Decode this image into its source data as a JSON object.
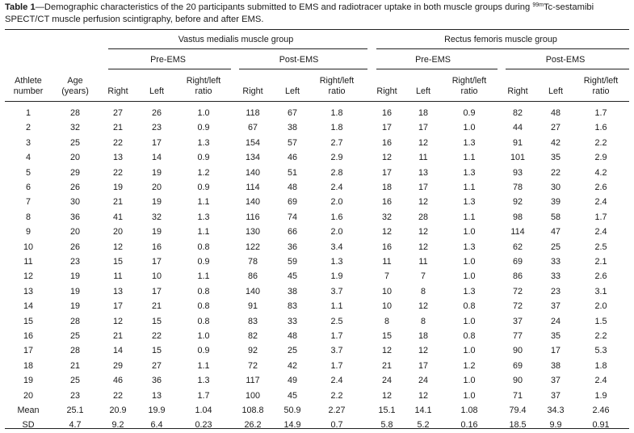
{
  "caption": {
    "label": "Table 1",
    "text_before_sup": "—Demographic characteristics of the 20 participants submitted to EMS and radiotracer uptake in both muscle groups during ",
    "sup": "99m",
    "text_after_sup": "Tc-sestamibi SPECT/CT muscle perfusion scintigraphy, before and after EMS."
  },
  "groups": {
    "vastus": "Vastus medialis muscle group",
    "rectus": "Rectus femoris muscle group"
  },
  "phases": {
    "vm_pre": "Pre-EMS",
    "vm_post": "Post-EMS",
    "rf_pre": "Pre-EMS",
    "rf_post": "Post-EMS"
  },
  "columns": {
    "athlete_1": "Athlete",
    "athlete_2": "number",
    "age_1": "Age",
    "age_2": "(years)",
    "right": "Right",
    "left": "Left",
    "ratio_1": "Right/left",
    "ratio_2": "ratio"
  },
  "rows": [
    [
      "1",
      "28",
      "27",
      "26",
      "1.0",
      "118",
      "67",
      "1.8",
      "16",
      "18",
      "0.9",
      "82",
      "48",
      "1.7"
    ],
    [
      "2",
      "32",
      "21",
      "23",
      "0.9",
      "67",
      "38",
      "1.8",
      "17",
      "17",
      "1.0",
      "44",
      "27",
      "1.6"
    ],
    [
      "3",
      "25",
      "22",
      "17",
      "1.3",
      "154",
      "57",
      "2.7",
      "16",
      "12",
      "1.3",
      "91",
      "42",
      "2.2"
    ],
    [
      "4",
      "20",
      "13",
      "14",
      "0.9",
      "134",
      "46",
      "2.9",
      "12",
      "11",
      "1.1",
      "101",
      "35",
      "2.9"
    ],
    [
      "5",
      "29",
      "22",
      "19",
      "1.2",
      "140",
      "51",
      "2.8",
      "17",
      "13",
      "1.3",
      "93",
      "22",
      "4.2"
    ],
    [
      "6",
      "26",
      "19",
      "20",
      "0.9",
      "114",
      "48",
      "2.4",
      "18",
      "17",
      "1.1",
      "78",
      "30",
      "2.6"
    ],
    [
      "7",
      "30",
      "21",
      "19",
      "1.1",
      "140",
      "69",
      "2.0",
      "16",
      "12",
      "1.3",
      "92",
      "39",
      "2.4"
    ],
    [
      "8",
      "36",
      "41",
      "32",
      "1.3",
      "116",
      "74",
      "1.6",
      "32",
      "28",
      "1.1",
      "98",
      "58",
      "1.7"
    ],
    [
      "9",
      "20",
      "20",
      "19",
      "1.1",
      "130",
      "66",
      "2.0",
      "12",
      "12",
      "1.0",
      "114",
      "47",
      "2.4"
    ],
    [
      "10",
      "26",
      "12",
      "16",
      "0.8",
      "122",
      "36",
      "3.4",
      "16",
      "12",
      "1.3",
      "62",
      "25",
      "2.5"
    ],
    [
      "11",
      "23",
      "15",
      "17",
      "0.9",
      "78",
      "59",
      "1.3",
      "11",
      "11",
      "1.0",
      "69",
      "33",
      "2.1"
    ],
    [
      "12",
      "19",
      "11",
      "10",
      "1.1",
      "86",
      "45",
      "1.9",
      "7",
      "7",
      "1.0",
      "86",
      "33",
      "2.6"
    ],
    [
      "13",
      "19",
      "13",
      "17",
      "0.8",
      "140",
      "38",
      "3.7",
      "10",
      "8",
      "1.3",
      "72",
      "23",
      "3.1"
    ],
    [
      "14",
      "19",
      "17",
      "21",
      "0.8",
      "91",
      "83",
      "1.1",
      "10",
      "12",
      "0.8",
      "72",
      "37",
      "2.0"
    ],
    [
      "15",
      "28",
      "12",
      "15",
      "0.8",
      "83",
      "33",
      "2.5",
      "8",
      "8",
      "1.0",
      "37",
      "24",
      "1.5"
    ],
    [
      "16",
      "25",
      "21",
      "22",
      "1.0",
      "82",
      "48",
      "1.7",
      "15",
      "18",
      "0.8",
      "77",
      "35",
      "2.2"
    ],
    [
      "17",
      "28",
      "14",
      "15",
      "0.9",
      "92",
      "25",
      "3.7",
      "12",
      "12",
      "1.0",
      "90",
      "17",
      "5.3"
    ],
    [
      "18",
      "21",
      "29",
      "27",
      "1.1",
      "72",
      "42",
      "1.7",
      "21",
      "17",
      "1.2",
      "69",
      "38",
      "1.8"
    ],
    [
      "19",
      "25",
      "46",
      "36",
      "1.3",
      "117",
      "49",
      "2.4",
      "24",
      "24",
      "1.0",
      "90",
      "37",
      "2.4"
    ],
    [
      "20",
      "23",
      "22",
      "13",
      "1.7",
      "100",
      "45",
      "2.2",
      "12",
      "12",
      "1.0",
      "71",
      "37",
      "1.9"
    ],
    [
      "Mean",
      "25.1",
      "20.9",
      "19.9",
      "1.04",
      "108.8",
      "50.9",
      "2.27",
      "15.1",
      "14.1",
      "1.08",
      "79.4",
      "34.3",
      "2.46"
    ],
    [
      "SD",
      "4.7",
      "9.2",
      "6.4",
      "0.23",
      "26.2",
      "14.9",
      "0.7",
      "5.8",
      "5.2",
      "0.16",
      "18.5",
      "9.9",
      "0.91"
    ]
  ]
}
